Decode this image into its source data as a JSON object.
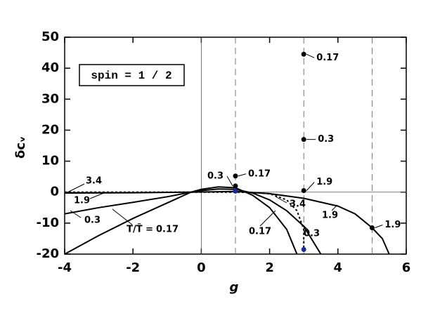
{
  "chart_data": {
    "type": "line",
    "xlabel": "g",
    "ylabel": "δcᵥ",
    "annotation": "spin = 1 / 2",
    "curve_label": "T/T̃ =",
    "xlim": [
      -4,
      6
    ],
    "ylim": [
      -20,
      50
    ],
    "xticks": [
      -4,
      -2,
      0,
      2,
      4,
      6
    ],
    "yticks": [
      -20,
      -10,
      0,
      10,
      20,
      30,
      40,
      50
    ],
    "vlines": [
      1,
      3,
      5
    ],
    "series": [
      {
        "name": "0.17",
        "color": "#000000",
        "dashed": false,
        "x": [
          -4,
          -3,
          -2,
          -1,
          -0.3,
          0,
          0.5,
          1,
          1.5,
          2,
          2.5,
          2.8
        ],
        "values": [
          -20,
          -14,
          -8.5,
          -3.5,
          0,
          0.9,
          1.7,
          1.4,
          -1,
          -5,
          -12,
          -20
        ]
      },
      {
        "name": "0.3",
        "color": "#000000",
        "dashed": false,
        "x": [
          -4,
          -3,
          -2,
          -1,
          -0.3,
          0,
          0.5,
          1,
          1.5,
          2,
          2.5,
          3,
          3.5
        ],
        "values": [
          -7,
          -5,
          -3.3,
          -1.5,
          0,
          0.5,
          1,
          0.9,
          -0.3,
          -2.5,
          -6,
          -11,
          -20
        ]
      },
      {
        "name": "1.9",
        "color": "#000000",
        "dashed": false,
        "x": [
          -4,
          -2,
          -0.3,
          0,
          1,
          2,
          3,
          4,
          4.5,
          5,
          5.3,
          5.5
        ],
        "values": [
          -0.3,
          -0.2,
          0,
          0.05,
          0.2,
          -0.5,
          -2,
          -4.5,
          -7,
          -11.5,
          -15,
          -20
        ]
      },
      {
        "name": "3.4",
        "color": "#000000",
        "dashed": true,
        "x": [
          -4,
          -2,
          0,
          1,
          1.5,
          2,
          2.5,
          2.8,
          3,
          3
        ],
        "values": [
          0,
          0,
          0,
          0,
          -0.1,
          -0.5,
          -2.5,
          -6,
          -12,
          -20
        ]
      }
    ],
    "points": {
      "x": [
        1,
        1,
        1,
        3,
        3,
        3,
        3,
        5
      ],
      "values": [
        5.2,
        2,
        0.3,
        44.5,
        17,
        0.5,
        -18.5,
        -11.5
      ],
      "labels": [
        "0.17",
        "0.3",
        null,
        "0.17",
        "0.3",
        "1.9",
        null,
        "1.9"
      ],
      "colors": [
        "#000000",
        "#000000",
        "#1a2a9a",
        "#000000",
        "#000000",
        "#000000",
        "#1a2a9a",
        "#000000"
      ]
    }
  }
}
